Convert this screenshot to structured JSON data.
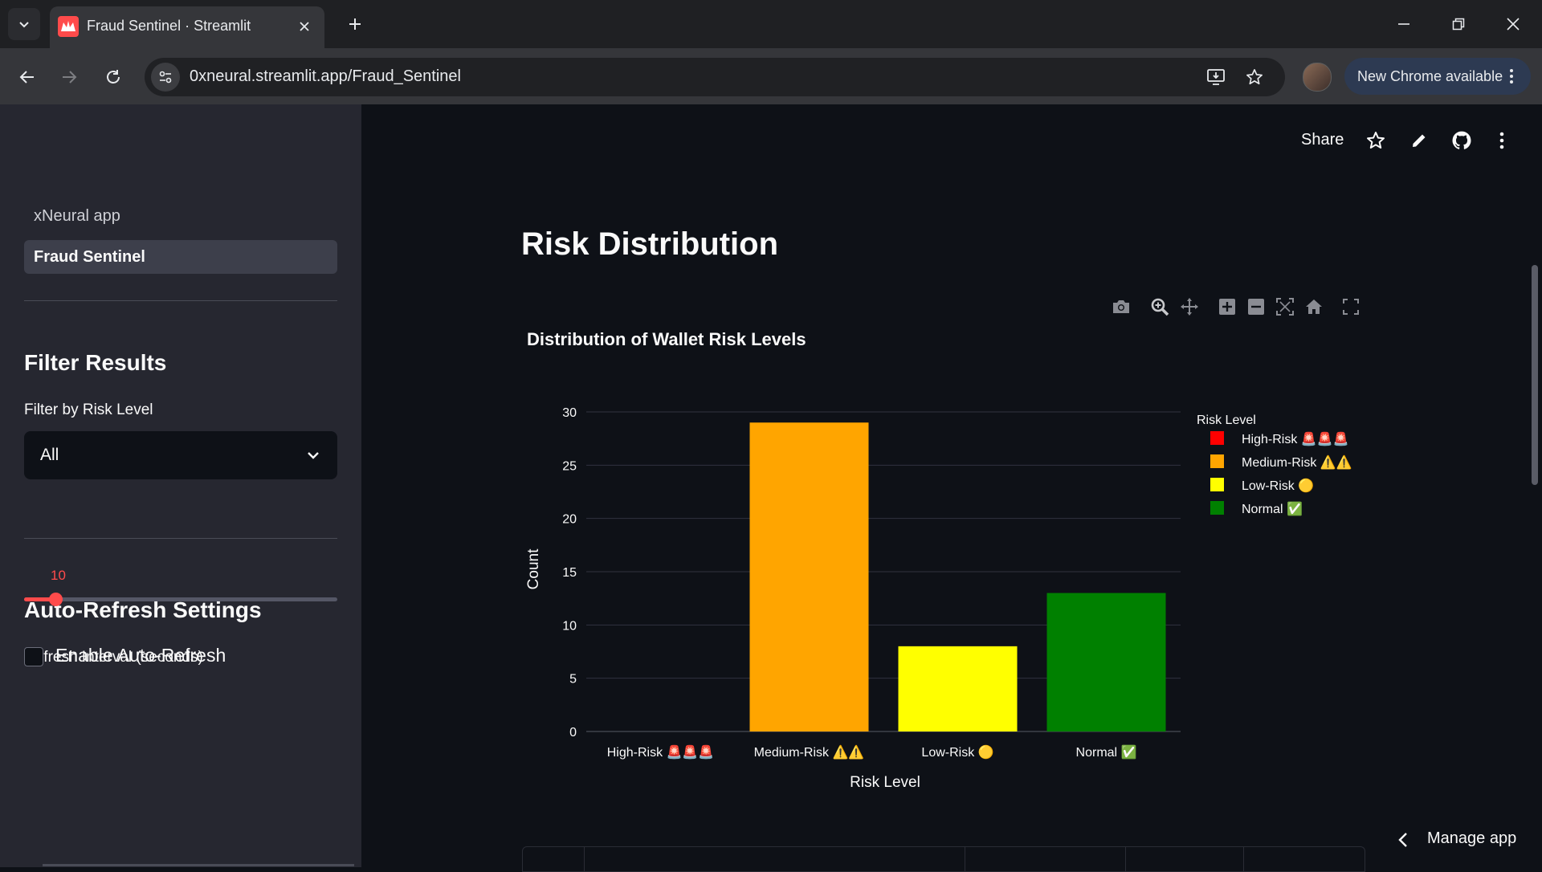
{
  "browser": {
    "tab_title": "Fraud Sentinel · Streamlit",
    "url": "0xneural.streamlit.app/Fraud_Sentinel",
    "update_label": "New Chrome available"
  },
  "sidebar": {
    "nav": [
      {
        "label": "xNeural app",
        "active": false
      },
      {
        "label": "Fraud Sentinel",
        "active": true
      }
    ],
    "filter_heading": "Filter Results",
    "filter_label": "Filter by Risk Level",
    "filter_value": "All",
    "refresh_heading": "Auto-Refresh Settings",
    "refresh_label": "Refresh Interval (seconds)",
    "refresh_value": "10",
    "refresh_fraction": 0.1,
    "autorefresh_label": "Enable Auto-Refresh",
    "autorefresh_checked": false
  },
  "header": {
    "share_label": "Share"
  },
  "main": {
    "page_title": "Risk Distribution",
    "manage_label": "Manage app"
  },
  "colors": {
    "accent": "#ff4b4b",
    "high": "#ff0000",
    "medium": "#ffa500",
    "low": "#ffff00",
    "normal": "#008000"
  },
  "chart_data": {
    "type": "bar",
    "title": "Distribution of Wallet Risk Levels",
    "xlabel": "Risk Level",
    "ylabel": "Count",
    "categories": [
      "High-Risk 🚨🚨🚨",
      "Medium-Risk ⚠️⚠️",
      "Low-Risk 🟡",
      "Normal ✅"
    ],
    "values": [
      0,
      29,
      8,
      13
    ],
    "colors": [
      "#ff0000",
      "#ffa500",
      "#ffff00",
      "#008000"
    ],
    "ylim": [
      0,
      30
    ],
    "yticks": [
      0,
      5,
      10,
      15,
      20,
      25,
      30
    ],
    "legend_title": "Risk Level",
    "legend_position": "right",
    "grid": true
  }
}
